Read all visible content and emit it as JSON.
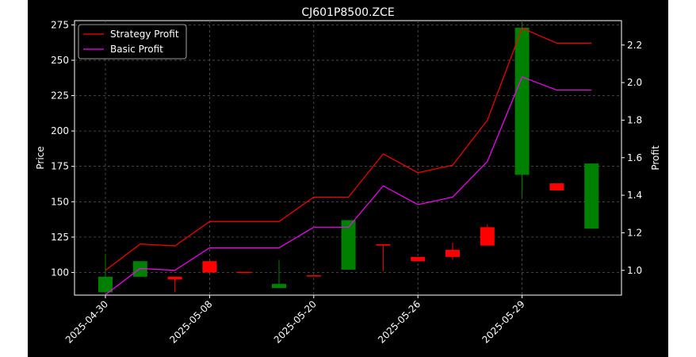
{
  "chart_data": {
    "type": "candlestick",
    "title": "CJ601P8500.ZCE",
    "ylabel_left": "Price",
    "ylabel_right": "Profit",
    "ylim_left": [
      84,
      278
    ],
    "ylim_right": [
      0.868,
      2.33
    ],
    "yticks_left": [
      "100",
      "125",
      "150",
      "175",
      "200",
      "225",
      "250",
      "275"
    ],
    "yticks_right": [
      "1.0",
      "1.2",
      "1.4",
      "1.6",
      "1.8",
      "2.0",
      "2.2"
    ],
    "xtick_labels": [
      "2025-04-30",
      "2025-05-08",
      "2025-05-20",
      "2025-05-26",
      "2025-05-29"
    ],
    "xtick_positions": [
      0,
      3,
      6,
      9,
      12
    ],
    "grid": true,
    "legend_position": "top-left",
    "colors": {
      "background": "#000000",
      "up": "#008000",
      "down": "#ff0000",
      "strategy": "#ff0000",
      "basic": "#ff00ff",
      "grid": "#555555",
      "text": "#ffffff"
    },
    "candles": [
      {
        "open": 86,
        "close": 97,
        "high": 113,
        "low": 86
      },
      {
        "open": 97,
        "close": 108,
        "high": 108,
        "low": 97
      },
      {
        "open": 97,
        "close": 95,
        "high": 97,
        "low": 86
      },
      {
        "open": 108,
        "close": 100,
        "high": 108,
        "low": 100
      },
      {
        "open": 100.4,
        "close": 100,
        "high": 100.4,
        "low": 100
      },
      {
        "open": 89,
        "close": 92,
        "high": 109,
        "low": 89
      },
      {
        "open": 98,
        "close": 97.5,
        "high": 98,
        "low": 97.5
      },
      {
        "open": 102,
        "close": 137,
        "high": 137,
        "low": 102
      },
      {
        "open": 120,
        "close": 119,
        "high": 120,
        "low": 101
      },
      {
        "open": 111,
        "close": 108,
        "high": 111,
        "low": 108
      },
      {
        "open": 116,
        "close": 111,
        "high": 121,
        "low": 109
      },
      {
        "open": 132,
        "close": 119,
        "high": 134,
        "low": 119
      },
      {
        "open": 169,
        "close": 273,
        "high": 277,
        "low": 153
      },
      {
        "open": 163,
        "close": 158,
        "high": 163,
        "low": 158
      },
      {
        "open": 131,
        "close": 177,
        "high": 177,
        "low": 131
      }
    ],
    "series": [
      {
        "name": "Strategy Profit",
        "values": [
          1.0,
          1.14,
          1.13,
          1.26,
          1.26,
          1.26,
          1.39,
          1.39,
          1.62,
          1.52,
          1.56,
          1.8,
          2.29,
          2.21,
          2.21
        ]
      },
      {
        "name": "Basic Profit",
        "values": [
          0.87,
          1.01,
          1.0,
          1.12,
          1.12,
          1.12,
          1.23,
          1.23,
          1.45,
          1.35,
          1.39,
          1.58,
          2.03,
          1.96,
          1.96
        ]
      }
    ]
  }
}
